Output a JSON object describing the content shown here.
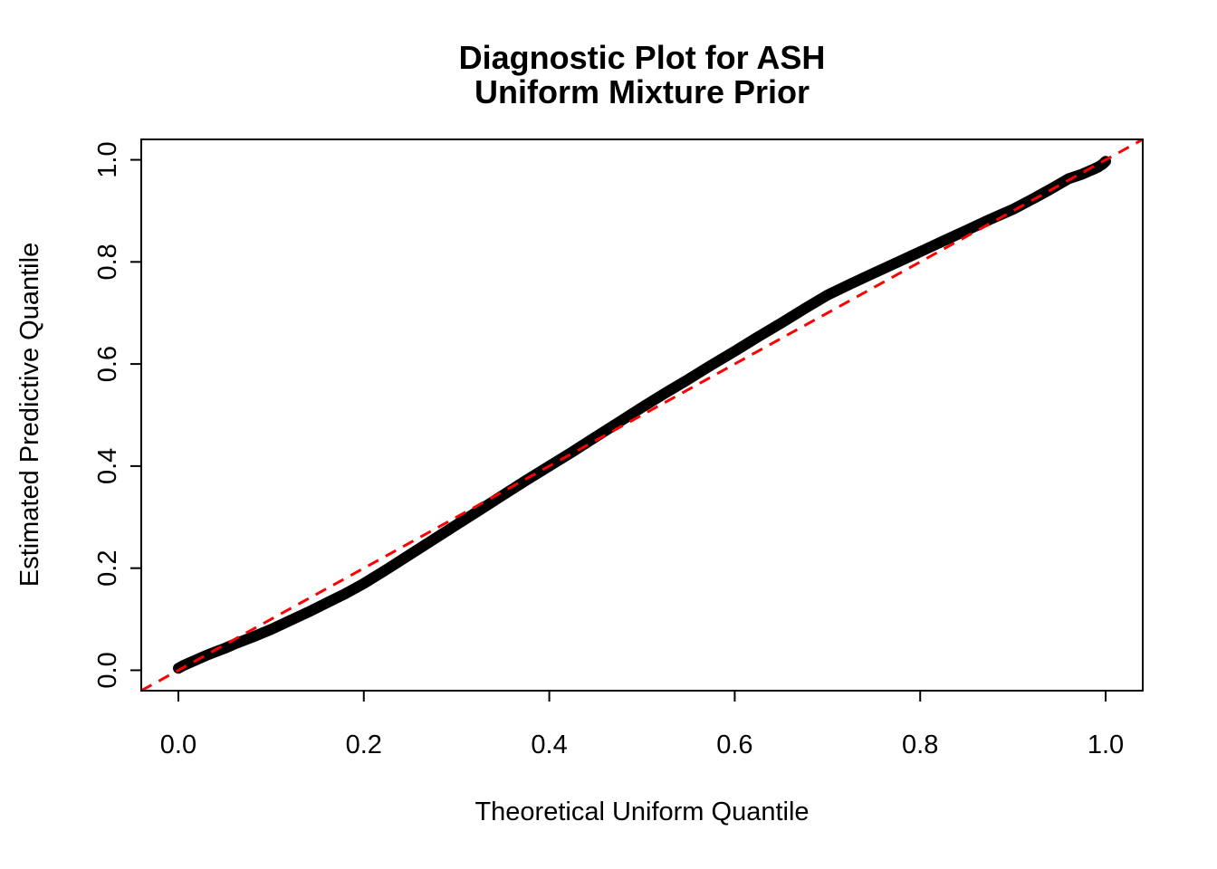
{
  "chart": {
    "title_line1": "Diagnostic Plot for ASH",
    "title_line2": "Uniform Mixture Prior",
    "xlabel": "Theoretical Uniform Quantile",
    "ylabel": "Estimated Predictive Quantile"
  },
  "colors": {
    "curve": "#000000",
    "reference_line": "#FF0000",
    "background": "#FFFFFF",
    "text": "#000000"
  },
  "chart_data": {
    "type": "scatter",
    "title": "Diagnostic Plot for ASH\nUniform Mixture Prior",
    "xlabel": "Theoretical Uniform Quantile",
    "ylabel": "Estimated Predictive Quantile",
    "xlim": [
      -0.04,
      1.04
    ],
    "ylim": [
      -0.04,
      1.04
    ],
    "x_ticks": [
      0.0,
      0.2,
      0.4,
      0.6,
      0.8,
      1.0
    ],
    "y_ticks": [
      0.0,
      0.2,
      0.4,
      0.6,
      0.8,
      1.0
    ],
    "x_tick_labels": [
      "0.0",
      "0.2",
      "0.4",
      "0.6",
      "0.8",
      "1.0"
    ],
    "y_tick_labels": [
      "0.0",
      "0.2",
      "0.4",
      "0.6",
      "0.8",
      "1.0"
    ],
    "grid": false,
    "legend": null,
    "series": [
      {
        "name": "estimated-predictive-quantile-curve",
        "render": "dense-point-curve",
        "color": "#000000",
        "points": [
          [
            0.0,
            0.004
          ],
          [
            0.005,
            0.009
          ],
          [
            0.01,
            0.013
          ],
          [
            0.02,
            0.021
          ],
          [
            0.03,
            0.029
          ],
          [
            0.04,
            0.036
          ],
          [
            0.05,
            0.043
          ],
          [
            0.06,
            0.051
          ],
          [
            0.08,
            0.065
          ],
          [
            0.1,
            0.08
          ],
          [
            0.12,
            0.097
          ],
          [
            0.14,
            0.114
          ],
          [
            0.16,
            0.132
          ],
          [
            0.18,
            0.15
          ],
          [
            0.2,
            0.17
          ],
          [
            0.225,
            0.198
          ],
          [
            0.25,
            0.227
          ],
          [
            0.275,
            0.256
          ],
          [
            0.3,
            0.285
          ],
          [
            0.325,
            0.314
          ],
          [
            0.35,
            0.343
          ],
          [
            0.375,
            0.372
          ],
          [
            0.4,
            0.4
          ],
          [
            0.425,
            0.428
          ],
          [
            0.45,
            0.457
          ],
          [
            0.475,
            0.486
          ],
          [
            0.5,
            0.515
          ],
          [
            0.525,
            0.543
          ],
          [
            0.55,
            0.57
          ],
          [
            0.575,
            0.598
          ],
          [
            0.6,
            0.625
          ],
          [
            0.625,
            0.653
          ],
          [
            0.65,
            0.68
          ],
          [
            0.675,
            0.708
          ],
          [
            0.7,
            0.735
          ],
          [
            0.725,
            0.757
          ],
          [
            0.75,
            0.778
          ],
          [
            0.775,
            0.799
          ],
          [
            0.8,
            0.82
          ],
          [
            0.825,
            0.841
          ],
          [
            0.85,
            0.862
          ],
          [
            0.875,
            0.883
          ],
          [
            0.9,
            0.903
          ],
          [
            0.92,
            0.922
          ],
          [
            0.94,
            0.942
          ],
          [
            0.96,
            0.963
          ],
          [
            0.975,
            0.972
          ],
          [
            0.985,
            0.98
          ],
          [
            0.992,
            0.986
          ],
          [
            0.997,
            0.992
          ],
          [
            1.0,
            0.997
          ]
        ]
      },
      {
        "name": "reference-line-y-equals-x",
        "render": "dashed-line",
        "color": "#FF0000",
        "points": [
          [
            -0.04,
            -0.04
          ],
          [
            1.04,
            1.04
          ]
        ]
      }
    ]
  }
}
